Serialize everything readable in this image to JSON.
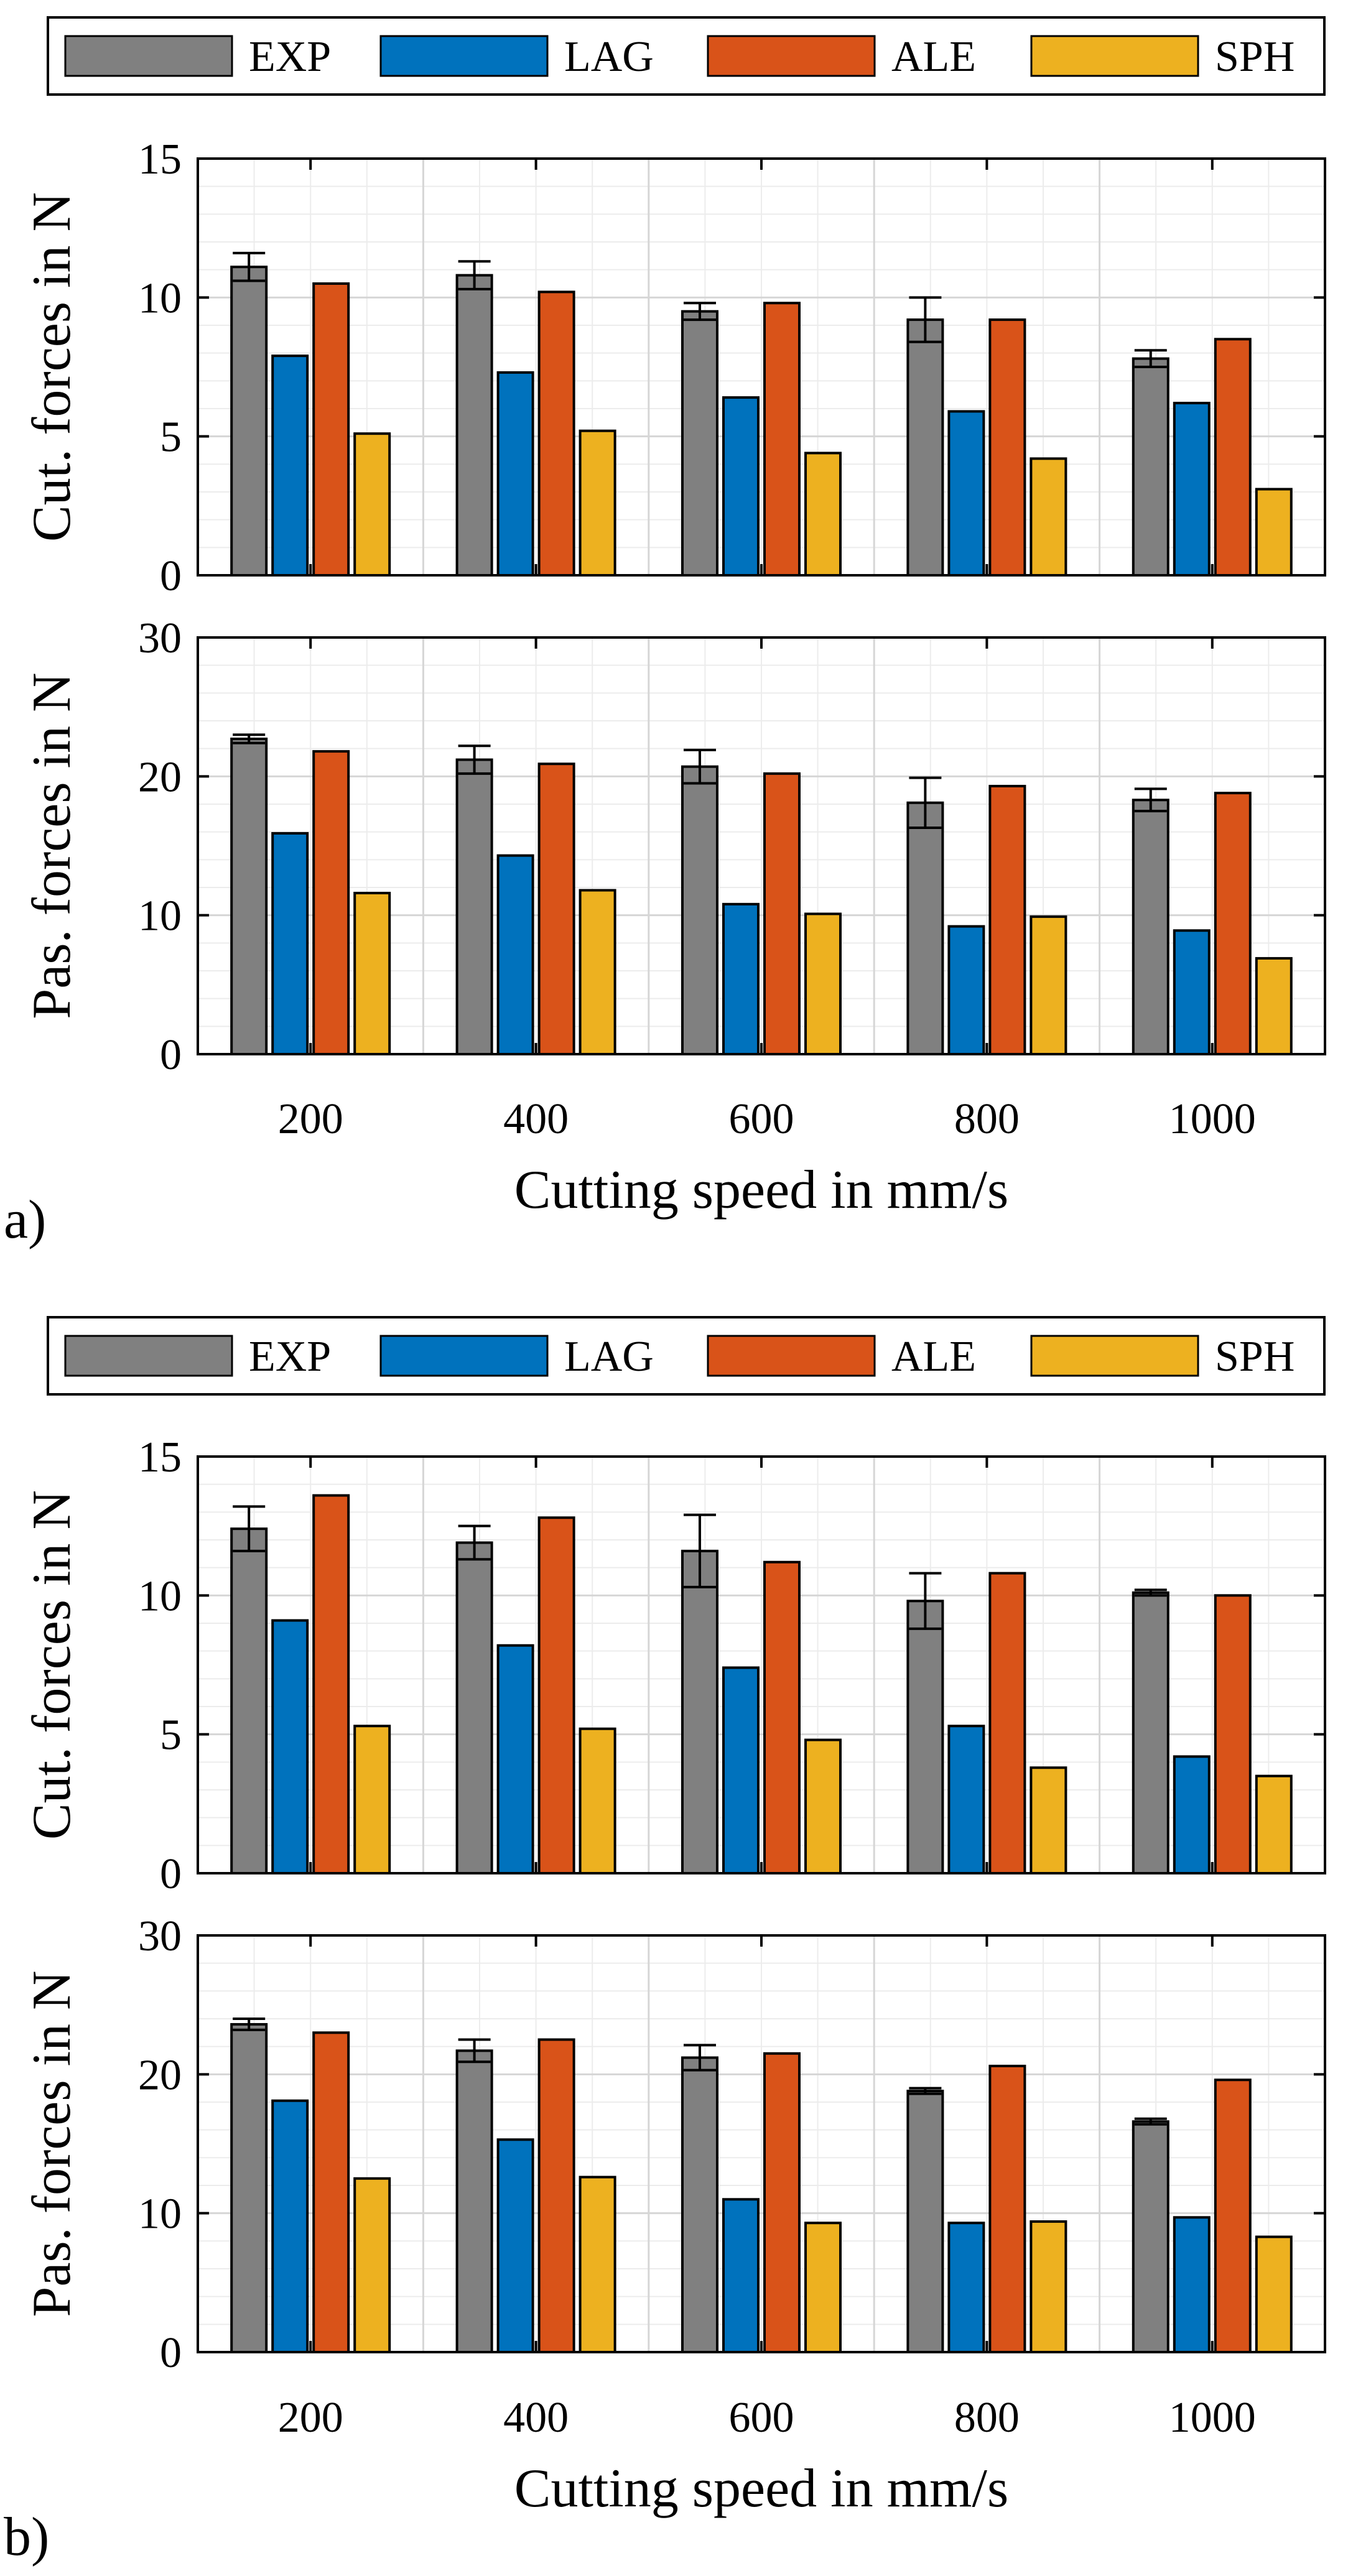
{
  "colors": {
    "EXP": "#808080",
    "LAG": "#0072BD",
    "ALE": "#D95319",
    "SPH": "#EDB120",
    "grid": "#d6d6d6",
    "minor_grid": "#ececec"
  },
  "legend": [
    "EXP",
    "LAG",
    "ALE",
    "SPH"
  ],
  "chart_data": [
    {
      "panel": "a)",
      "type": "bar",
      "title": "",
      "xlabel": "Cutting speed in mm/s",
      "categories": [
        "200",
        "400",
        "600",
        "800",
        "1000"
      ],
      "subplots": [
        {
          "ylabel": "Cut. forces in N",
          "ylim": [
            0,
            15
          ],
          "yticks": [
            "0",
            "5",
            "10",
            "15"
          ],
          "grid": true,
          "series": [
            {
              "name": "EXP",
              "values": [
                11.1,
                10.8,
                9.5,
                9.2,
                7.8
              ],
              "errors": [
                0.5,
                0.5,
                0.3,
                0.8,
                0.3
              ]
            },
            {
              "name": "LAG",
              "values": [
                7.9,
                7.3,
                6.4,
                5.9,
                6.2
              ]
            },
            {
              "name": "ALE",
              "values": [
                10.5,
                10.2,
                9.8,
                9.2,
                8.5
              ]
            },
            {
              "name": "SPH",
              "values": [
                5.1,
                5.2,
                4.4,
                4.2,
                3.1
              ]
            }
          ]
        },
        {
          "ylabel": "Pas. forces in N",
          "ylim": [
            0,
            30
          ],
          "yticks": [
            "0",
            "10",
            "20",
            "30"
          ],
          "grid": true,
          "series": [
            {
              "name": "EXP",
              "values": [
                22.7,
                21.2,
                20.7,
                18.1,
                18.3
              ],
              "errors": [
                0.3,
                1.0,
                1.2,
                1.8,
                0.8
              ]
            },
            {
              "name": "LAG",
              "values": [
                15.9,
                14.3,
                10.8,
                9.2,
                8.9
              ]
            },
            {
              "name": "ALE",
              "values": [
                21.8,
                20.9,
                20.2,
                19.3,
                18.8
              ]
            },
            {
              "name": "SPH",
              "values": [
                11.6,
                11.8,
                10.1,
                9.9,
                6.9
              ]
            }
          ]
        }
      ]
    },
    {
      "panel": "b)",
      "type": "bar",
      "title": "",
      "xlabel": "Cutting speed in mm/s",
      "categories": [
        "200",
        "400",
        "600",
        "800",
        "1000"
      ],
      "subplots": [
        {
          "ylabel": "Cut. forces in N",
          "ylim": [
            0,
            15
          ],
          "yticks": [
            "0",
            "5",
            "10",
            "15"
          ],
          "grid": true,
          "series": [
            {
              "name": "EXP",
              "values": [
                12.4,
                11.9,
                11.6,
                9.8,
                10.1
              ],
              "errors": [
                0.8,
                0.6,
                1.3,
                1.0,
                0.1
              ]
            },
            {
              "name": "LAG",
              "values": [
                9.1,
                8.2,
                7.4,
                5.3,
                4.2
              ]
            },
            {
              "name": "ALE",
              "values": [
                13.6,
                12.8,
                11.2,
                10.8,
                10.0
              ]
            },
            {
              "name": "SPH",
              "values": [
                5.3,
                5.2,
                4.8,
                3.8,
                3.5
              ]
            }
          ]
        },
        {
          "ylabel": "Pas. forces in N",
          "ylim": [
            0,
            30
          ],
          "yticks": [
            "0",
            "10",
            "20",
            "30"
          ],
          "grid": true,
          "series": [
            {
              "name": "EXP",
              "values": [
                23.6,
                21.7,
                21.2,
                18.8,
                16.6
              ],
              "errors": [
                0.4,
                0.8,
                0.9,
                0.2,
                0.2
              ]
            },
            {
              "name": "LAG",
              "values": [
                18.1,
                15.3,
                11.0,
                9.3,
                9.7
              ]
            },
            {
              "name": "ALE",
              "values": [
                23.0,
                22.5,
                21.5,
                20.6,
                19.6
              ]
            },
            {
              "name": "SPH",
              "values": [
                12.5,
                12.6,
                9.3,
                9.4,
                8.3
              ]
            }
          ]
        }
      ]
    }
  ]
}
